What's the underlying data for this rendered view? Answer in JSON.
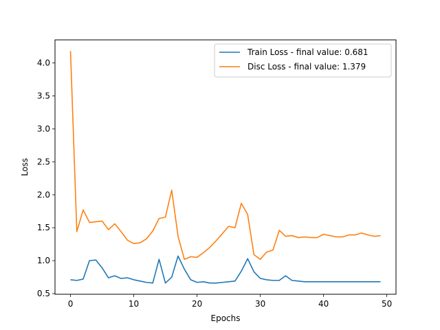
{
  "chart_data": {
    "type": "line",
    "xlabel": "Epochs",
    "ylabel": "Loss",
    "xlim": [
      -2.45,
      51.45
    ],
    "ylim": [
      0.49,
      4.35
    ],
    "xticks": [
      0,
      10,
      20,
      30,
      40,
      50
    ],
    "xtick_labels": [
      "0",
      "10",
      "20",
      "30",
      "40",
      "50"
    ],
    "yticks": [
      0.5,
      1.0,
      1.5,
      2.0,
      2.5,
      3.0,
      3.5,
      4.0
    ],
    "ytick_labels": [
      "0.5",
      "1.0",
      "1.5",
      "2.0",
      "2.5",
      "3.0",
      "3.5",
      "4.0"
    ],
    "grid": false,
    "legend_position": "top-right",
    "x": [
      0,
      1,
      2,
      3,
      4,
      5,
      6,
      7,
      8,
      9,
      10,
      11,
      12,
      13,
      14,
      15,
      16,
      17,
      18,
      19,
      20,
      21,
      22,
      23,
      24,
      25,
      26,
      27,
      28,
      29,
      30,
      31,
      32,
      33,
      34,
      35,
      36,
      37,
      38,
      39,
      40,
      41,
      42,
      43,
      44,
      45,
      46,
      47,
      48,
      49
    ],
    "series": [
      {
        "name": "Train Loss - final value: 0.681",
        "color": "#1f77b4",
        "values": [
          0.71,
          0.7,
          0.72,
          1.0,
          1.01,
          0.89,
          0.74,
          0.77,
          0.73,
          0.74,
          0.71,
          0.69,
          0.67,
          0.66,
          1.02,
          0.66,
          0.75,
          1.07,
          0.87,
          0.71,
          0.67,
          0.68,
          0.66,
          0.66,
          0.67,
          0.68,
          0.69,
          0.84,
          1.03,
          0.83,
          0.73,
          0.71,
          0.7,
          0.7,
          0.77,
          0.7,
          0.69,
          0.68,
          0.68,
          0.68,
          0.68,
          0.68,
          0.68,
          0.68,
          0.68,
          0.68,
          0.68,
          0.68,
          0.68,
          0.68
        ]
      },
      {
        "name": "Disc Loss - final value: 1.379",
        "color": "#ff7f0e",
        "values": [
          4.18,
          1.44,
          1.77,
          1.58,
          1.59,
          1.6,
          1.47,
          1.56,
          1.44,
          1.31,
          1.26,
          1.27,
          1.33,
          1.45,
          1.64,
          1.66,
          2.07,
          1.37,
          1.02,
          1.06,
          1.05,
          1.12,
          1.2,
          1.3,
          1.41,
          1.52,
          1.5,
          1.87,
          1.7,
          1.09,
          1.02,
          1.13,
          1.16,
          1.46,
          1.37,
          1.38,
          1.35,
          1.36,
          1.35,
          1.35,
          1.4,
          1.38,
          1.36,
          1.36,
          1.39,
          1.39,
          1.42,
          1.39,
          1.37,
          1.379
        ]
      }
    ]
  }
}
